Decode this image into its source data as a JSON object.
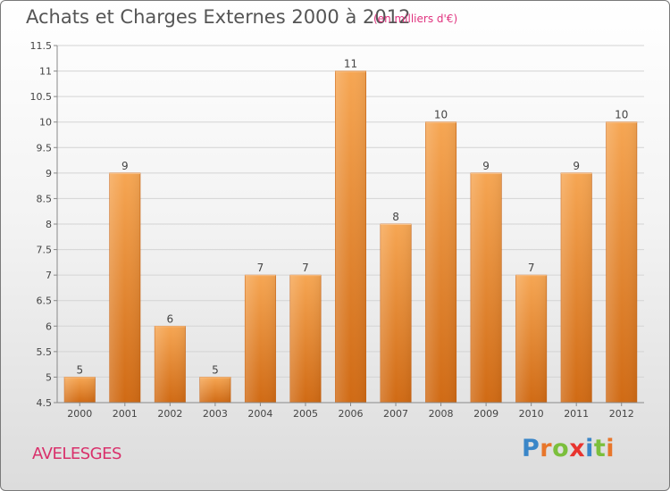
{
  "title": "Achats et Charges Externes 2000 à 2012",
  "subtitle": "(en milliers d'€)",
  "commune": "AVELESGES",
  "logo": {
    "letters": [
      "P",
      "r",
      "o",
      "x",
      "i",
      "t",
      "i"
    ],
    "colors": [
      "#3a86c8",
      "#e8762b",
      "#7bbf3c",
      "#e8342f",
      "#3a86c8",
      "#7bbf3c",
      "#e8762b"
    ]
  },
  "chart_data": {
    "type": "bar",
    "categories": [
      "2000",
      "2001",
      "2002",
      "2003",
      "2004",
      "2005",
      "2006",
      "2007",
      "2008",
      "2009",
      "2010",
      "2011",
      "2012"
    ],
    "values": [
      5,
      9,
      6,
      5,
      7,
      7,
      11,
      8,
      10,
      9,
      7,
      9,
      10
    ],
    "data_labels": [
      "5",
      "9",
      "6",
      "5",
      "7",
      "7",
      "11",
      "8",
      "10",
      "9",
      "7",
      "9",
      "10"
    ],
    "yticks": [
      "4.5",
      "5",
      "5.5",
      "6",
      "6.5",
      "7",
      "7.5",
      "8",
      "8.5",
      "9",
      "9.5",
      "10",
      "10.5",
      "11",
      "11.5"
    ],
    "ylim": [
      4.5,
      11.5
    ],
    "grid": true,
    "bar_color": "#ec8c2f"
  }
}
